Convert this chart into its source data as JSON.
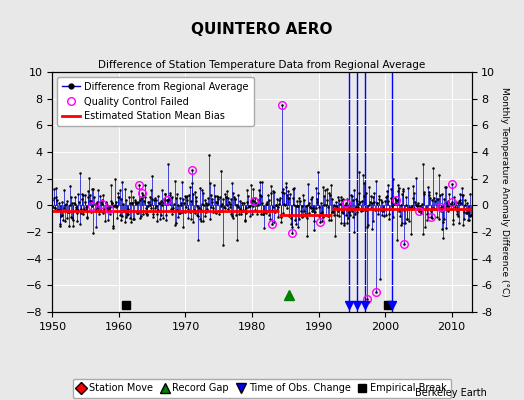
{
  "title": "QUINTERO AERO",
  "subtitle": "Difference of Station Temperature Data from Regional Average",
  "ylabel_right": "Monthly Temperature Anomaly Difference (°C)",
  "credit": "Berkeley Earth",
  "xlim": [
    1950,
    2013
  ],
  "ylim": [
    -8,
    10
  ],
  "yticks": [
    -8,
    -6,
    -4,
    -2,
    0,
    2,
    4,
    6,
    8,
    10
  ],
  "xticks": [
    1950,
    1960,
    1970,
    1980,
    1990,
    2000,
    2010
  ],
  "bg_color": "#e8e8e8",
  "line_color": "#0000cc",
  "dot_color": "#000000",
  "bias_color": "#ff0000",
  "qc_color": "#ff00ff",
  "vline_color": "#0000ff",
  "grid_color": "#ffffff",
  "event_station_move": [],
  "event_record_gap": [
    1985.5
  ],
  "event_tobs_change": [
    1994.5,
    1995.8,
    1997.0,
    2001.0
  ],
  "event_empirical_break": [
    1961.0,
    2000.5
  ],
  "bias_segments": [
    {
      "x_start": 1950,
      "x_end": 1984,
      "y": -0.4
    },
    {
      "x_start": 1984,
      "x_end": 1992,
      "y": -0.7
    },
    {
      "x_start": 1992,
      "x_end": 2013,
      "y": -0.3
    }
  ],
  "seed": 42,
  "n_points": 756,
  "figsize": [
    5.24,
    4.0
  ],
  "dpi": 100
}
